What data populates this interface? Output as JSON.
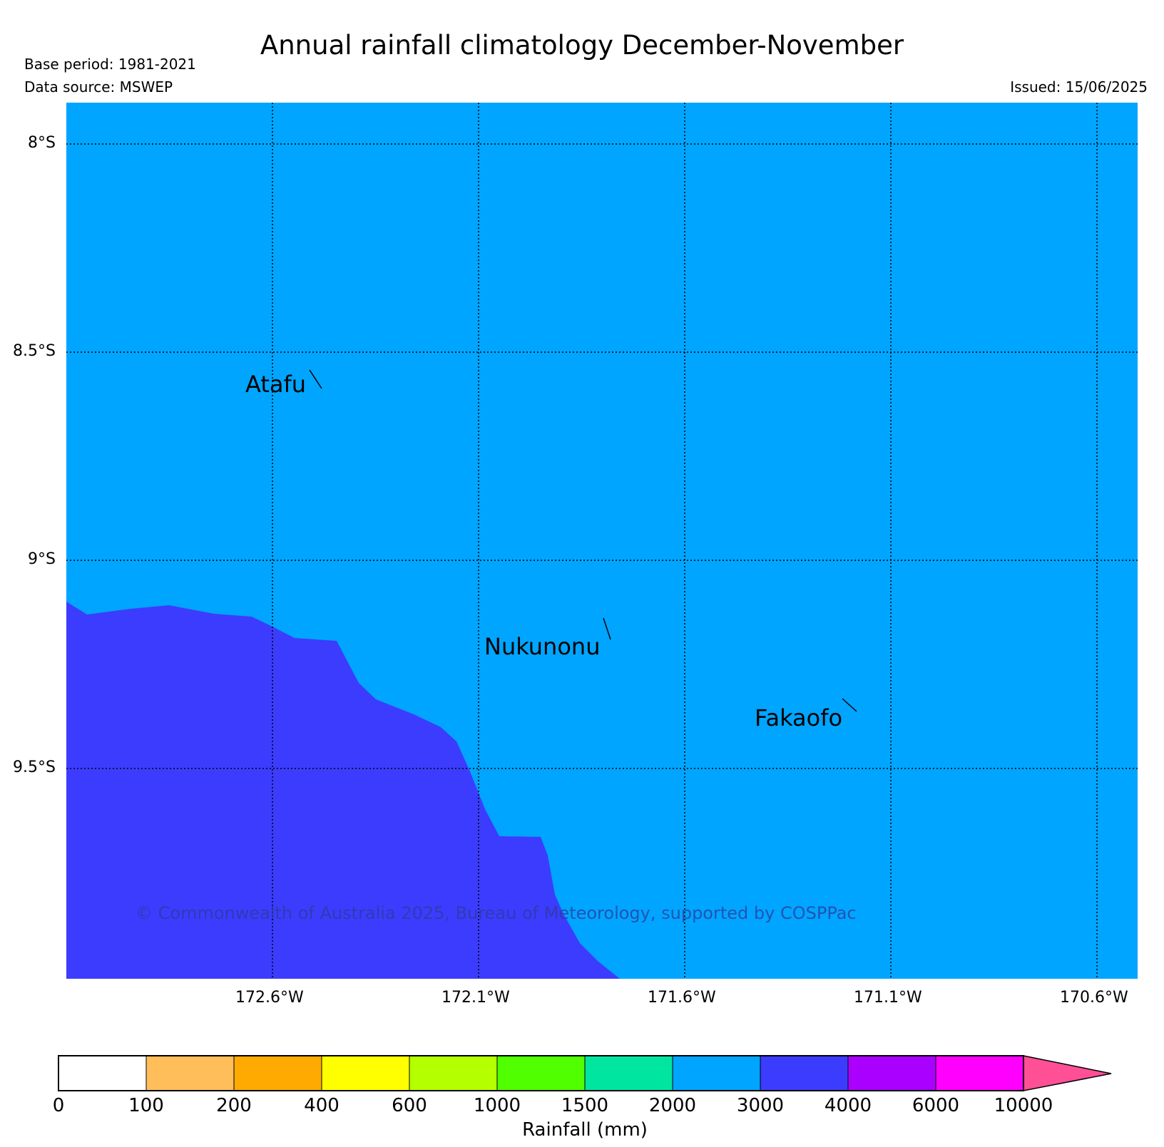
{
  "header": {
    "title": "Annual rainfall climatology December-November",
    "base_period": "Base period: 1981-2021",
    "data_source": "Data source: MSWEP",
    "issued": "Issued: 15/06/2025"
  },
  "map": {
    "lat_labels": [
      "8°S",
      "8.5°S",
      "9°S",
      "9.5°S"
    ],
    "lon_labels": [
      "172.6°W",
      "172.1°W",
      "171.6°W",
      "171.1°W",
      "170.6°W"
    ],
    "places": [
      "Atafu",
      "Nukunonu",
      "Fakaofo"
    ],
    "copyright": "© Commonwealth of Australia 2025, Bureau of Meteorology, supported by COSPPac",
    "fill_colors": {
      "band_2000_3000": "#00a5ff",
      "band_3000_4000": "#3c3cff"
    }
  },
  "colorbar": {
    "label": "Rainfall (mm)",
    "ticks": [
      "0",
      "100",
      "200",
      "400",
      "600",
      "1000",
      "1500",
      "2000",
      "3000",
      "4000",
      "6000",
      "10000"
    ],
    "colors": [
      "#ffffff",
      "#ffbe5a",
      "#ffaa00",
      "#ffff00",
      "#b4ff00",
      "#50ff00",
      "#00e6a0",
      "#00a5ff",
      "#3c3cff",
      "#aa00ff",
      "#ff00ff"
    ],
    "extend_color": "#ff5096"
  }
}
